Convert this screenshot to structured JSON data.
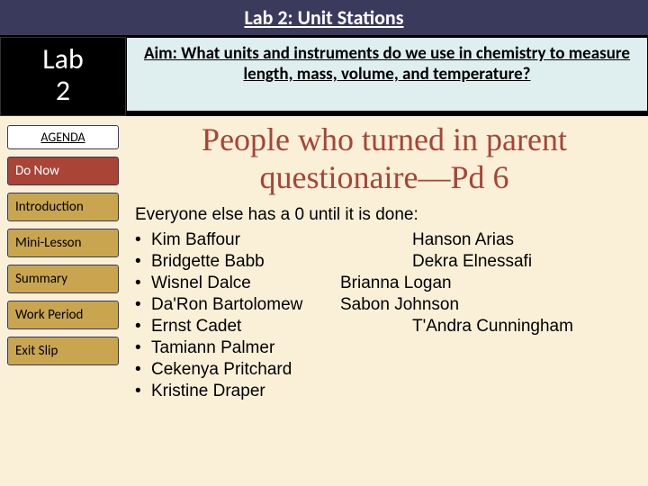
{
  "title": "Lab 2: Unit Stations",
  "badge": {
    "line1": "Lab",
    "line2": "2"
  },
  "aim": "Aim: What units and instruments do we use in chemistry to measure length, mass, volume, and temperature?",
  "agenda": {
    "header": "AGENDA",
    "do_now": "Do Now",
    "items": [
      "Introduction",
      "Mini-Lesson",
      "Summary",
      "Work Period",
      "Exit Slip"
    ]
  },
  "heading": "People who turned in parent questionaire—Pd 6",
  "sub": "Everyone else has a 0 until it is done:",
  "rows": [
    {
      "left": "Kim Baffour",
      "right": "Hanson Arias",
      "rightClass": "col2b"
    },
    {
      "left": "Bridgette Babb",
      "right": "Dekra Elnessafi",
      "rightClass": "col2b"
    },
    {
      "left": "Wisnel Dalce",
      "right": "Brianna Logan",
      "rightClass": ""
    },
    {
      "left": "Da'Ron Bartolomew",
      "right": "Sabon Johnson",
      "rightClass": ""
    },
    {
      "left": "Ernst Cadet",
      "right": "T'Andra Cunningham",
      "rightClass": "col2b"
    },
    {
      "left": "Tamiann Palmer",
      "right": "",
      "rightClass": ""
    },
    {
      "left": "Cekenya Pritchard",
      "right": "",
      "rightClass": ""
    },
    {
      "left": "Kristine Draper",
      "right": "",
      "rightClass": ""
    }
  ],
  "colors": {
    "title_bg": "#3a3a5c",
    "aim_bg": "#dfeff0",
    "page_bg": "#faf0d8",
    "do_now_bg": "#a94436",
    "agenda_bg": "#c9a550",
    "heading_color": "#a94436"
  }
}
